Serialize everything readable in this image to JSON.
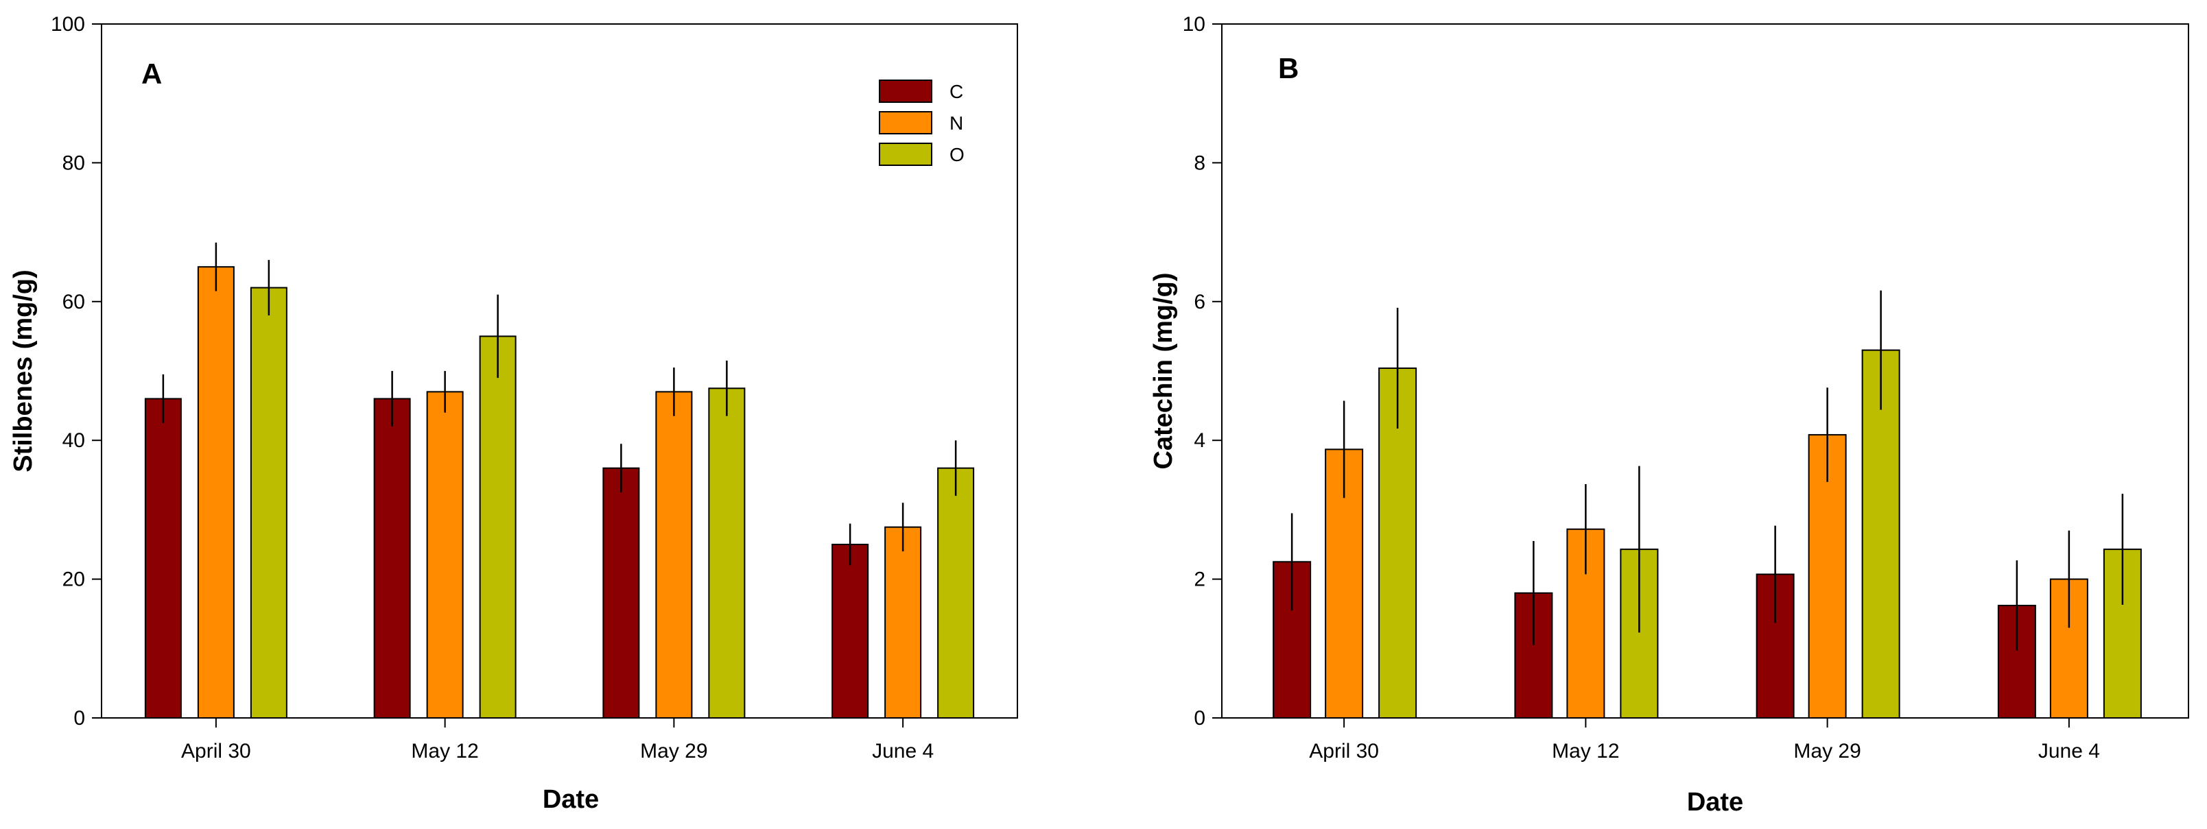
{
  "chart_data": [
    {
      "type": "bar",
      "panel_label": "A",
      "title": "",
      "xlabel": "Date",
      "ylabel": "Stilbenes (mg/g)",
      "ylim": [
        0,
        100
      ],
      "yticks": [
        0,
        20,
        40,
        60,
        80,
        100
      ],
      "categories": [
        "April 30",
        "May 12",
        "May 29",
        "June 4"
      ],
      "series": [
        {
          "name": "C",
          "color": "#8b0000",
          "values": [
            46,
            46,
            36,
            25
          ],
          "errors": [
            3.5,
            4,
            3.5,
            3
          ]
        },
        {
          "name": "N",
          "color": "#ff8c00",
          "values": [
            65,
            47,
            47,
            27.5
          ],
          "errors": [
            3.5,
            3,
            3.5,
            3.5
          ]
        },
        {
          "name": "O",
          "color": "#bdbd00",
          "values": [
            62,
            55,
            47.5,
            36
          ],
          "errors": [
            4,
            6,
            4,
            4
          ]
        }
      ],
      "legend": {
        "position": "top-right",
        "entries": [
          "C",
          "N",
          "O"
        ]
      },
      "grid": false
    },
    {
      "type": "bar",
      "panel_label": "B",
      "title": "",
      "xlabel": "Date",
      "ylabel": "Catechin (mg/g)",
      "ylim": [
        0,
        10
      ],
      "yticks": [
        0,
        2,
        4,
        6,
        8,
        10
      ],
      "categories": [
        "April 30",
        "May 12",
        "May 29",
        "June 4"
      ],
      "series": [
        {
          "name": "C",
          "color": "#8b0000",
          "values": [
            2.25,
            1.8,
            2.07,
            1.62
          ],
          "errors": [
            0.7,
            0.75,
            0.7,
            0.65
          ]
        },
        {
          "name": "N",
          "color": "#ff8c00",
          "values": [
            3.87,
            2.72,
            4.08,
            2.0
          ],
          "errors": [
            0.7,
            0.65,
            0.68,
            0.7
          ]
        },
        {
          "name": "O",
          "color": "#bdbd00",
          "values": [
            5.04,
            2.43,
            5.3,
            2.43
          ],
          "errors": [
            0.87,
            1.2,
            0.86,
            0.8
          ]
        }
      ],
      "grid": false
    }
  ]
}
